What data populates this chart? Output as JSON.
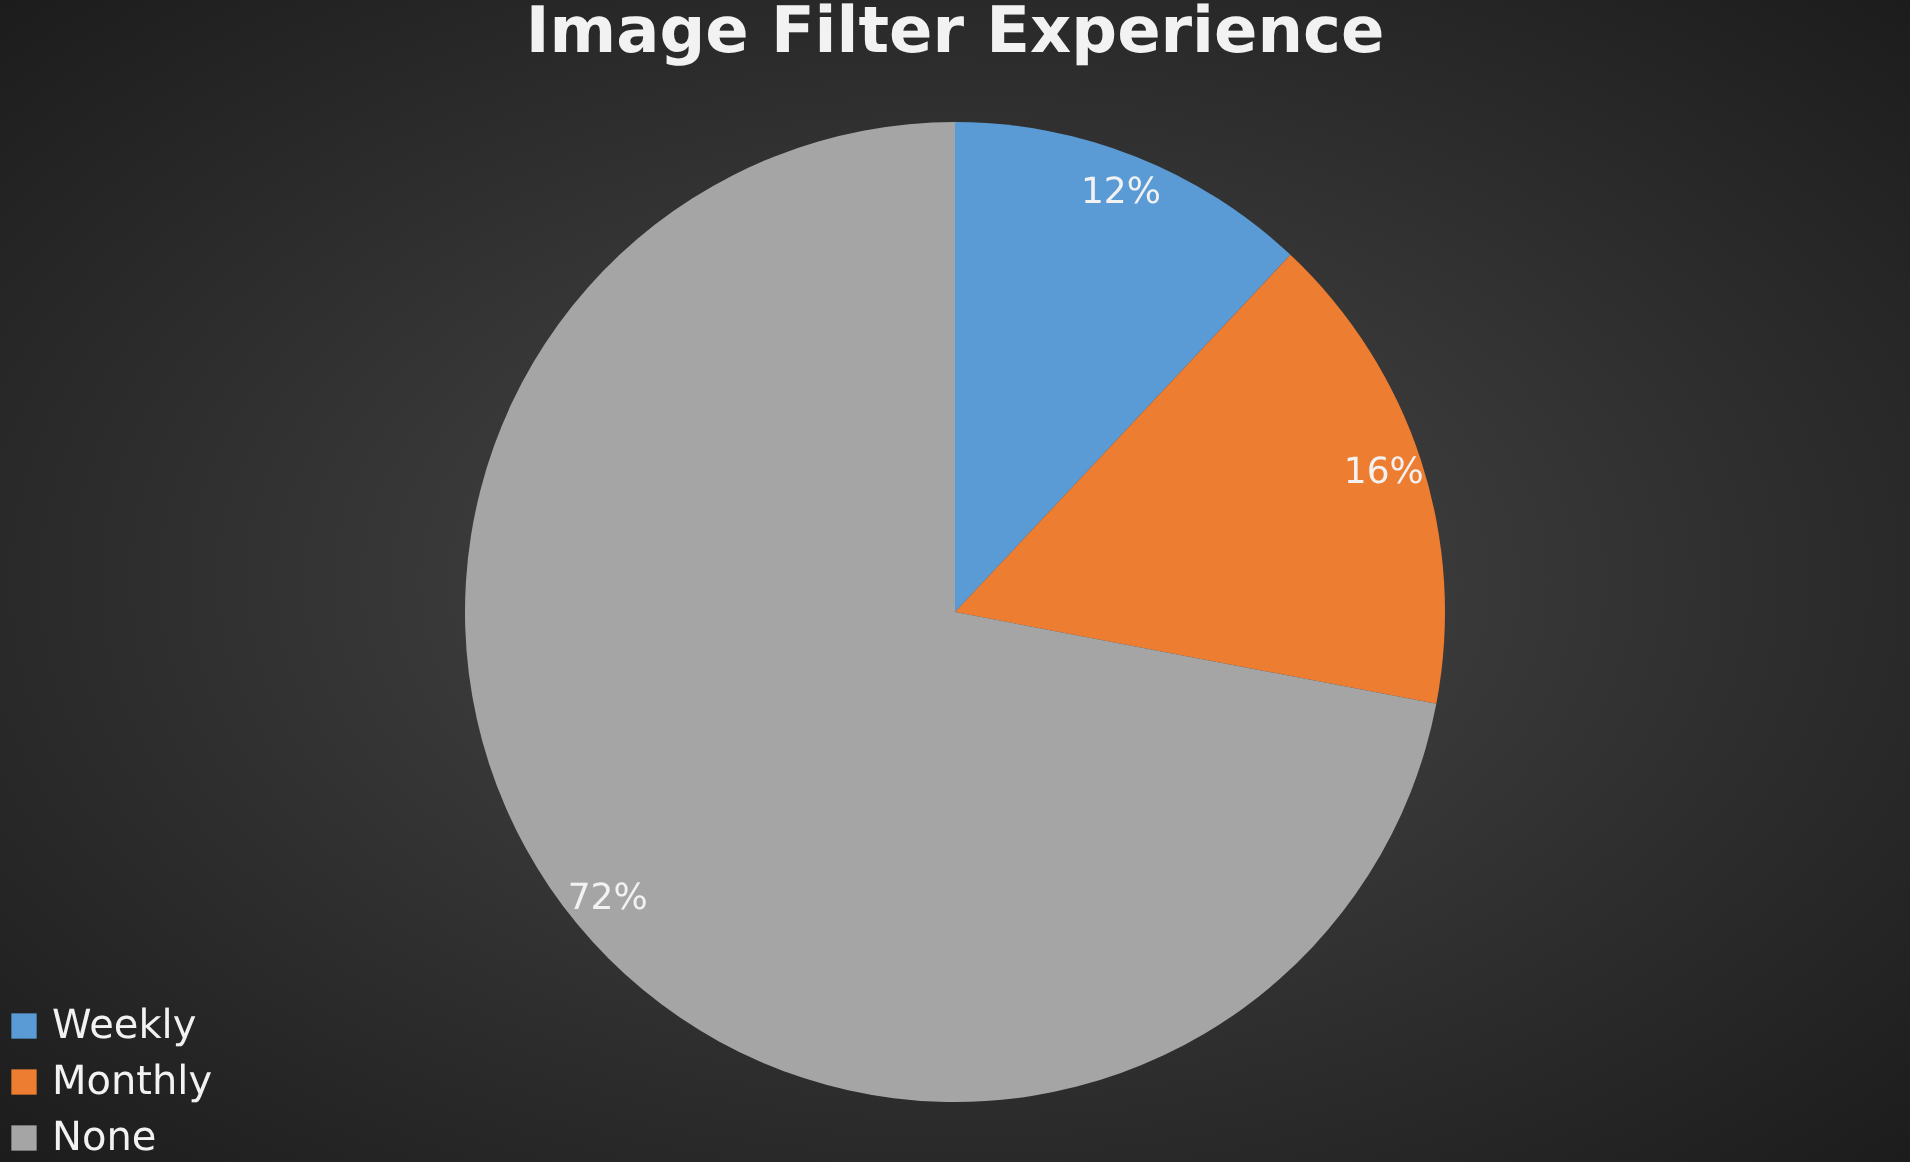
{
  "chart_data": {
    "type": "pie",
    "title": "Image Filter Experience",
    "categories": [
      "Weekly",
      "Monthly",
      "None"
    ],
    "values": [
      12,
      16,
      72
    ],
    "colors": [
      "#5b9bd5",
      "#ed7d31",
      "#a5a5a5"
    ],
    "value_labels": [
      "12%",
      "16%",
      "72%"
    ],
    "legend": "bottom left"
  }
}
